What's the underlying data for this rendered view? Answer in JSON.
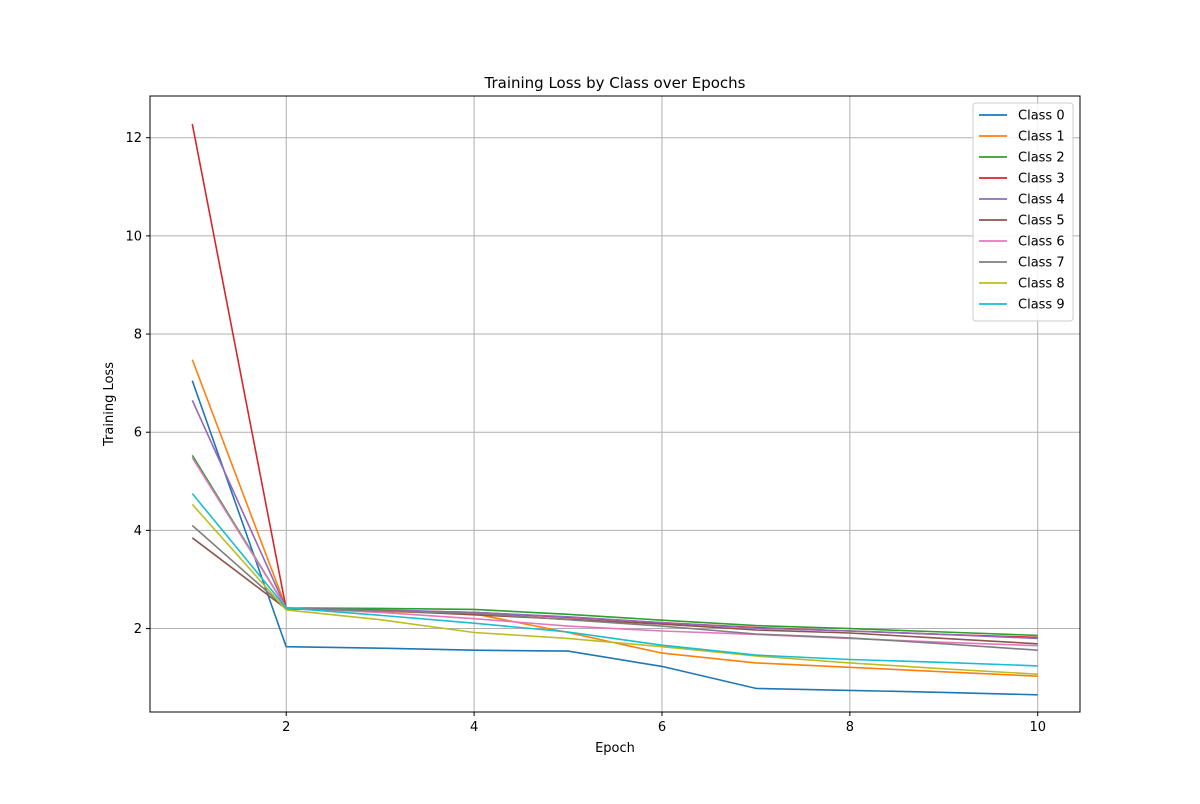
{
  "chart_data": {
    "type": "line",
    "title": "Training Loss by Class over Epochs",
    "xlabel": "Epoch",
    "ylabel": "Training Loss",
    "x": [
      1,
      2,
      3,
      4,
      5,
      6,
      7,
      8,
      9,
      10
    ],
    "xlim": [
      0.55,
      10.45
    ],
    "ylim": [
      0.3,
      12.85
    ],
    "xticks": [
      2,
      4,
      6,
      8,
      10
    ],
    "yticks": [
      2,
      4,
      6,
      8,
      10,
      12
    ],
    "grid": true,
    "legend_position": "top-right",
    "series": [
      {
        "name": "Class 0",
        "color": "#1f77b4",
        "values": [
          7.05,
          1.63,
          1.6,
          1.56,
          1.54,
          1.23,
          0.78,
          0.74,
          0.7,
          0.65
        ]
      },
      {
        "name": "Class 1",
        "color": "#ff7f0e",
        "values": [
          7.48,
          2.42,
          2.35,
          2.3,
          1.92,
          1.5,
          1.3,
          1.21,
          1.12,
          1.03
        ]
      },
      {
        "name": "Class 2",
        "color": "#2ca02c",
        "values": [
          5.53,
          2.42,
          2.41,
          2.39,
          2.29,
          2.17,
          2.06,
          2.0,
          1.93,
          1.86
        ]
      },
      {
        "name": "Class 3",
        "color": "#d62728",
        "values": [
          12.28,
          2.4,
          2.37,
          2.33,
          2.23,
          2.12,
          2.02,
          1.95,
          1.88,
          1.82
        ]
      },
      {
        "name": "Class 4",
        "color": "#9467bd",
        "values": [
          6.65,
          2.41,
          2.38,
          2.33,
          2.24,
          2.12,
          2.01,
          1.95,
          1.88,
          1.8
        ]
      },
      {
        "name": "Class 5",
        "color": "#8c564b",
        "values": [
          3.85,
          2.4,
          2.37,
          2.28,
          2.19,
          2.09,
          1.97,
          1.91,
          1.8,
          1.69
        ]
      },
      {
        "name": "Class 6",
        "color": "#e377c2",
        "values": [
          5.48,
          2.42,
          2.33,
          2.2,
          2.05,
          1.95,
          1.88,
          1.8,
          1.72,
          1.65
        ]
      },
      {
        "name": "Class 7",
        "color": "#7f7f7f",
        "values": [
          4.1,
          2.41,
          2.36,
          2.31,
          2.18,
          2.05,
          1.89,
          1.81,
          1.69,
          1.56
        ]
      },
      {
        "name": "Class 8",
        "color": "#bcbd22",
        "values": [
          4.53,
          2.38,
          2.18,
          1.92,
          1.8,
          1.63,
          1.44,
          1.3,
          1.18,
          1.07
        ]
      },
      {
        "name": "Class 9",
        "color": "#17becf",
        "values": [
          4.75,
          2.42,
          2.27,
          2.11,
          1.93,
          1.66,
          1.46,
          1.37,
          1.31,
          1.24
        ]
      }
    ]
  }
}
